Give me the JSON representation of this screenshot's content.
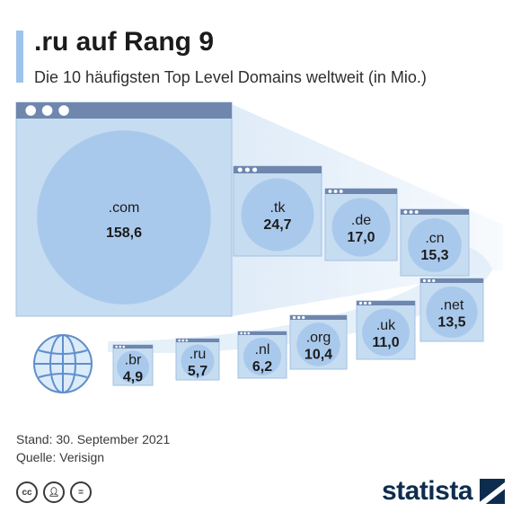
{
  "header": {
    "title": ".ru auf Rang 9",
    "subtitle": "Die 10 häufigsten Top Level Domains weltweit (in Mio.)"
  },
  "chart_data": {
    "type": "bar",
    "title": ".ru auf Rang 9",
    "subtitle": "Die 10 häufigsten Top Level Domains weltweit (in Mio.)",
    "categories": [
      ".com",
      ".tk",
      ".de",
      ".cn",
      ".net",
      ".uk",
      ".org",
      ".nl",
      ".ru",
      ".br"
    ],
    "values": [
      158.6,
      24.7,
      17.0,
      15.3,
      13.5,
      11.0,
      10.4,
      6.2,
      5.7,
      4.9
    ],
    "value_labels": [
      "158,6",
      "24,7",
      "17,0",
      "15,3",
      "13,5",
      "11,0",
      "10,4",
      "6,2",
      "5,7",
      "4,9"
    ],
    "unit": "Mio.",
    "grid": false
  },
  "footer": {
    "stand": "Stand: 30. September 2021",
    "quelle": "Quelle: Verisign"
  },
  "license_icons": [
    "cc",
    "by",
    "nd"
  ],
  "brand": {
    "name": "statista"
  },
  "colors": {
    "window_frame": "#c6dcf1",
    "window_bar": "#6f87ad",
    "circle": "#a9c9ec",
    "accent": "#9ec3ea",
    "brand": "#0e2d4e"
  }
}
